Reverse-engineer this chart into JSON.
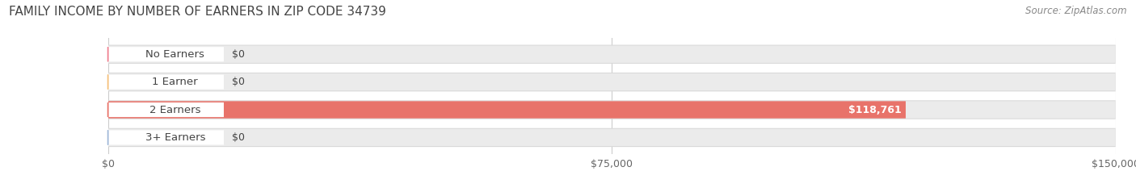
{
  "title": "FAMILY INCOME BY NUMBER OF EARNERS IN ZIP CODE 34739",
  "source": "Source: ZipAtlas.com",
  "categories": [
    "No Earners",
    "1 Earner",
    "2 Earners",
    "3+ Earners"
  ],
  "values": [
    0,
    0,
    118761,
    0
  ],
  "bar_colors": [
    "#f08090",
    "#f5c07a",
    "#e8736a",
    "#a0b8d8"
  ],
  "bar_track_color": "#ebebeb",
  "bar_border_color": "#d8d8d8",
  "xlim": [
    0,
    150000
  ],
  "xticks": [
    0,
    75000,
    150000
  ],
  "xtick_labels": [
    "$0",
    "$75,000",
    "$150,000"
  ],
  "value_labels": [
    "$0",
    "$0",
    "$118,761",
    "$0"
  ],
  "title_fontsize": 11,
  "source_fontsize": 8.5,
  "label_fontsize": 9.5,
  "value_fontsize": 9,
  "background_color": "#ffffff",
  "grid_color": "#cccccc",
  "text_color": "#444444",
  "source_color": "#888888"
}
